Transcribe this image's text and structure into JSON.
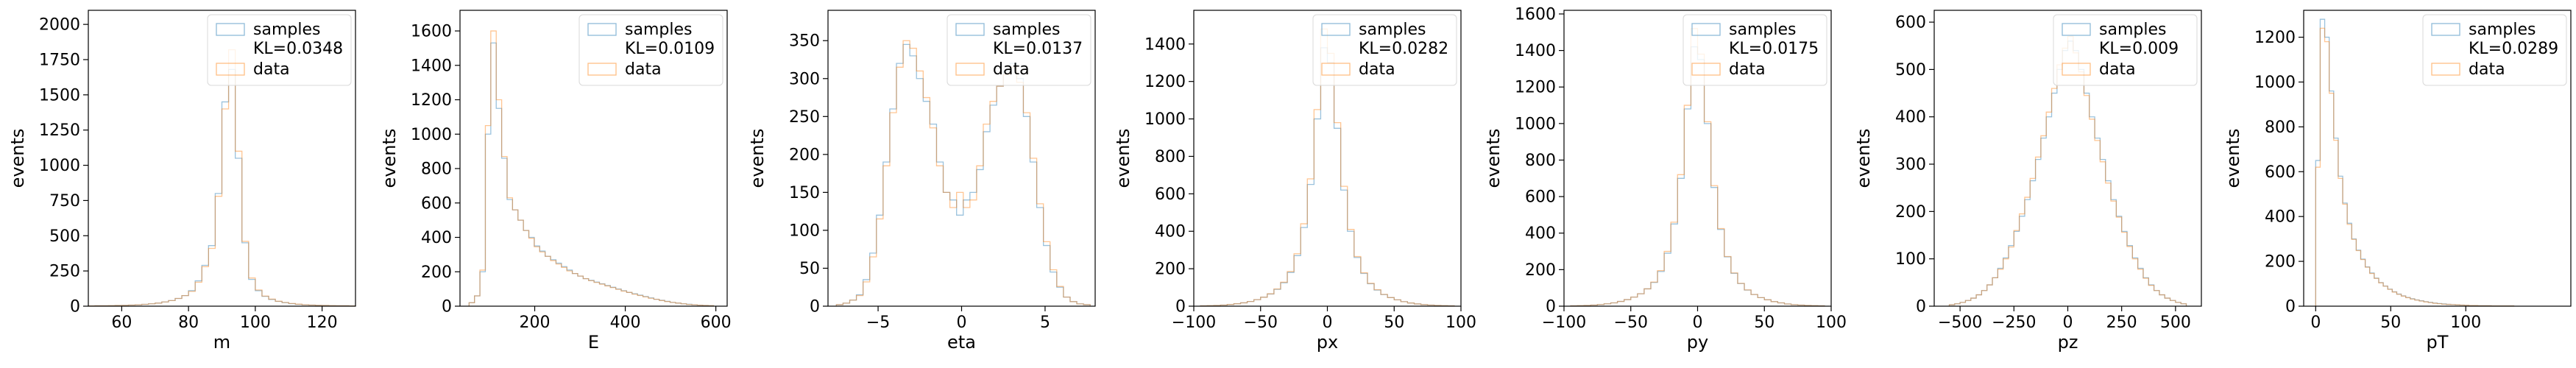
{
  "figure": {
    "colors": {
      "samples": "#1f77b4",
      "data": "#ff7f0e"
    },
    "legend_placement": "upper-right",
    "ylabel": "events"
  },
  "chart_data": [
    {
      "type": "histogram",
      "xlabel": "m",
      "ylabel": "events",
      "xlim": [
        50,
        130
      ],
      "ylim": [
        0,
        2100
      ],
      "xticks": [
        60,
        80,
        100,
        120
      ],
      "yticks": [
        0,
        250,
        500,
        750,
        1000,
        1250,
        1500,
        1750,
        2000
      ],
      "legend": [
        "samples",
        "KL=0.0348",
        "data"
      ],
      "bins": [
        50,
        52,
        54,
        56,
        58,
        60,
        62,
        64,
        66,
        68,
        70,
        72,
        74,
        76,
        78,
        80,
        82,
        84,
        86,
        88,
        90,
        92,
        94,
        96,
        98,
        100,
        102,
        104,
        106,
        108,
        110,
        112,
        114,
        116,
        118,
        120,
        122,
        124,
        126,
        128,
        130
      ],
      "series": [
        {
          "name": "samples",
          "values": [
            2,
            3,
            3,
            4,
            5,
            6,
            8,
            10,
            13,
            17,
            22,
            30,
            40,
            55,
            75,
            110,
            180,
            290,
            430,
            800,
            1450,
            1680,
            1050,
            450,
            190,
            110,
            70,
            48,
            34,
            25,
            18,
            13,
            10,
            8,
            6,
            5,
            4,
            3,
            3,
            2
          ]
        },
        {
          "name": "data",
          "values": [
            2,
            3,
            3,
            4,
            5,
            6,
            8,
            10,
            13,
            17,
            22,
            30,
            40,
            55,
            75,
            105,
            170,
            280,
            410,
            780,
            1400,
            1820,
            1100,
            460,
            200,
            115,
            72,
            50,
            35,
            26,
            19,
            14,
            10,
            8,
            6,
            5,
            4,
            3,
            3,
            2
          ]
        }
      ]
    },
    {
      "type": "histogram",
      "xlabel": "E",
      "ylabel": "events",
      "xlim": [
        35,
        625
      ],
      "ylim": [
        0,
        1720
      ],
      "xticks": [
        200,
        400,
        600
      ],
      "yticks": [
        0,
        200,
        400,
        600,
        800,
        1000,
        1200,
        1400,
        1600
      ],
      "legend": [
        "samples",
        "KL=0.0109",
        "data"
      ],
      "bins": [
        55,
        67,
        79,
        91,
        103,
        115,
        127,
        139,
        151,
        163,
        175,
        187,
        199,
        211,
        223,
        235,
        247,
        259,
        271,
        283,
        295,
        307,
        319,
        331,
        343,
        355,
        367,
        379,
        391,
        403,
        415,
        427,
        439,
        451,
        463,
        475,
        487,
        499,
        511,
        523,
        535,
        547,
        559,
        571,
        583,
        595
      ],
      "series": [
        {
          "name": "samples",
          "values": [
            20,
            60,
            200,
            1000,
            1530,
            1150,
            860,
            620,
            560,
            500,
            440,
            400,
            350,
            320,
            290,
            270,
            250,
            230,
            210,
            190,
            175,
            160,
            150,
            140,
            130,
            120,
            110,
            100,
            90,
            80,
            72,
            64,
            56,
            48,
            40,
            34,
            28,
            22,
            18,
            14,
            11,
            8,
            6,
            4,
            3
          ]
        },
        {
          "name": "data",
          "values": [
            20,
            60,
            210,
            1050,
            1600,
            1200,
            870,
            630,
            560,
            500,
            440,
            395,
            345,
            315,
            290,
            265,
            245,
            225,
            205,
            190,
            175,
            160,
            148,
            138,
            128,
            118,
            108,
            98,
            88,
            80,
            70,
            62,
            54,
            46,
            40,
            33,
            27,
            22,
            18,
            14,
            10,
            8,
            6,
            4,
            3
          ]
        }
      ]
    },
    {
      "type": "histogram",
      "xlabel": "eta",
      "ylabel": "events",
      "xlim": [
        -8,
        8
      ],
      "ylim": [
        0,
        390
      ],
      "xticks": [
        -5,
        0,
        5
      ],
      "yticks": [
        0,
        50,
        100,
        150,
        200,
        250,
        300,
        350
      ],
      "legend": [
        "samples",
        "KL=0.0137",
        "data"
      ],
      "bins": [
        -7.5,
        -7.1,
        -6.7,
        -6.3,
        -5.9,
        -5.5,
        -5.1,
        -4.7,
        -4.3,
        -3.9,
        -3.5,
        -3.1,
        -2.7,
        -2.3,
        -1.9,
        -1.5,
        -1.1,
        -0.7,
        -0.3,
        0.1,
        0.5,
        0.9,
        1.3,
        1.7,
        2.1,
        2.5,
        2.9,
        3.3,
        3.7,
        4.1,
        4.5,
        4.9,
        5.3,
        5.7,
        6.1,
        6.5,
        6.9,
        7.3,
        7.7
      ],
      "series": [
        {
          "name": "samples",
          "values": [
            2,
            4,
            8,
            15,
            35,
            70,
            120,
            190,
            260,
            320,
            345,
            330,
            300,
            270,
            240,
            190,
            150,
            140,
            120,
            140,
            150,
            180,
            230,
            265,
            290,
            310,
            320,
            300,
            250,
            190,
            130,
            80,
            45,
            25,
            12,
            6,
            3,
            2
          ]
        },
        {
          "name": "data",
          "values": [
            2,
            4,
            8,
            14,
            32,
            65,
            115,
            185,
            255,
            315,
            350,
            340,
            310,
            275,
            235,
            185,
            150,
            130,
            150,
            130,
            140,
            185,
            240,
            270,
            290,
            305,
            315,
            295,
            255,
            195,
            135,
            85,
            48,
            26,
            12,
            6,
            3,
            2
          ]
        }
      ]
    },
    {
      "type": "histogram",
      "xlabel": "px",
      "ylabel": "events",
      "xlim": [
        -100,
        100
      ],
      "ylim": [
        0,
        1580
      ],
      "xticks": [
        -100,
        -50,
        0,
        50,
        100
      ],
      "yticks": [
        0,
        200,
        400,
        600,
        800,
        1000,
        1200,
        1400
      ],
      "legend": [
        "samples",
        "KL=0.0282",
        "data"
      ],
      "bins": [
        -95,
        -90,
        -85,
        -80,
        -75,
        -70,
        -65,
        -60,
        -55,
        -50,
        -45,
        -40,
        -35,
        -30,
        -25,
        -20,
        -15,
        -10,
        -5,
        0,
        5,
        10,
        15,
        20,
        25,
        30,
        35,
        40,
        45,
        50,
        55,
        60,
        65,
        70,
        75,
        80,
        85,
        90,
        95
      ],
      "series": [
        {
          "name": "samples",
          "values": [
            2,
            3,
            4,
            6,
            9,
            13,
            18,
            25,
            35,
            48,
            65,
            90,
            125,
            180,
            270,
            420,
            650,
            1000,
            1380,
            1300,
            950,
            620,
            400,
            260,
            175,
            120,
            86,
            62,
            46,
            34,
            24,
            17,
            12,
            8,
            6,
            4,
            3,
            2
          ]
        },
        {
          "name": "data",
          "values": [
            2,
            3,
            4,
            6,
            9,
            13,
            18,
            25,
            35,
            48,
            66,
            92,
            128,
            185,
            280,
            440,
            680,
            1050,
            1480,
            1350,
            980,
            640,
            410,
            265,
            178,
            122,
            88,
            63,
            46,
            34,
            24,
            17,
            12,
            8,
            6,
            4,
            3,
            2
          ]
        }
      ]
    },
    {
      "type": "histogram",
      "xlabel": "py",
      "ylabel": "events",
      "xlim": [
        -100,
        100
      ],
      "ylim": [
        0,
        1620
      ],
      "xticks": [
        -100,
        -50,
        0,
        50,
        100
      ],
      "yticks": [
        0,
        200,
        400,
        600,
        800,
        1000,
        1200,
        1400,
        1600
      ],
      "legend": [
        "samples",
        "KL=0.0175",
        "data"
      ],
      "bins": [
        -95,
        -90,
        -85,
        -80,
        -75,
        -70,
        -65,
        -60,
        -55,
        -50,
        -45,
        -40,
        -35,
        -30,
        -25,
        -20,
        -15,
        -10,
        -5,
        0,
        5,
        10,
        15,
        20,
        25,
        30,
        35,
        40,
        45,
        50,
        55,
        60,
        65,
        70,
        75,
        80,
        85,
        90,
        95
      ],
      "series": [
        {
          "name": "samples",
          "values": [
            2,
            3,
            4,
            6,
            9,
            13,
            18,
            26,
            36,
            50,
            68,
            95,
            130,
            190,
            290,
            450,
            700,
            1080,
            1420,
            1350,
            1000,
            650,
            420,
            270,
            180,
            124,
            88,
            64,
            47,
            35,
            25,
            18,
            12,
            8,
            6,
            4,
            3,
            2
          ]
        },
        {
          "name": "data",
          "values": [
            2,
            3,
            4,
            6,
            9,
            13,
            18,
            26,
            36,
            50,
            68,
            95,
            132,
            195,
            300,
            460,
            720,
            1100,
            1520,
            1380,
            1010,
            660,
            425,
            272,
            182,
            125,
            89,
            64,
            47,
            35,
            25,
            18,
            12,
            8,
            6,
            4,
            3,
            2
          ]
        }
      ]
    },
    {
      "type": "histogram",
      "xlabel": "pz",
      "ylabel": "events",
      "xlim": [
        -620,
        620
      ],
      "ylim": [
        0,
        625
      ],
      "xticks": [
        -500,
        -250,
        0,
        250,
        500
      ],
      "yticks": [
        0,
        100,
        200,
        300,
        400,
        500,
        600
      ],
      "legend": [
        "samples",
        "KL=0.009",
        "data"
      ],
      "bins": [
        -550,
        -525,
        -500,
        -475,
        -450,
        -425,
        -400,
        -375,
        -350,
        -325,
        -300,
        -275,
        -250,
        -225,
        -200,
        -175,
        -150,
        -125,
        -100,
        -75,
        -50,
        -25,
        0,
        25,
        50,
        75,
        100,
        125,
        150,
        175,
        200,
        225,
        250,
        275,
        300,
        325,
        350,
        375,
        400,
        425,
        450,
        475,
        500,
        525,
        550
      ],
      "series": [
        {
          "name": "samples",
          "values": [
            3,
            5,
            8,
            12,
            17,
            24,
            33,
            45,
            60,
            80,
            102,
            128,
            158,
            190,
            225,
            265,
            310,
            355,
            400,
            450,
            500,
            540,
            560,
            540,
            500,
            450,
            400,
            355,
            310,
            265,
            225,
            190,
            158,
            128,
            102,
            80,
            60,
            45,
            33,
            24,
            17,
            12,
            8,
            5
          ]
        },
        {
          "name": "data",
          "values": [
            3,
            5,
            8,
            12,
            17,
            24,
            33,
            45,
            60,
            78,
            100,
            125,
            160,
            195,
            230,
            270,
            315,
            360,
            410,
            460,
            510,
            545,
            570,
            535,
            495,
            445,
            395,
            350,
            305,
            260,
            222,
            188,
            156,
            126,
            100,
            78,
            59,
            44,
            33,
            24,
            17,
            12,
            8,
            5
          ]
        }
      ]
    },
    {
      "type": "histogram",
      "xlabel": "pT",
      "ylabel": "events",
      "xlim": [
        -8,
        170
      ],
      "ylim": [
        0,
        1320
      ],
      "xticks": [
        0,
        50,
        100
      ],
      "yticks": [
        0,
        200,
        400,
        600,
        800,
        1000,
        1200
      ],
      "legend": [
        "samples",
        "KL=0.0289",
        "data"
      ],
      "bins": [
        0,
        3,
        6,
        9,
        12,
        15,
        18,
        21,
        24,
        27,
        30,
        33,
        36,
        39,
        42,
        45,
        48,
        51,
        54,
        57,
        60,
        63,
        66,
        69,
        72,
        75,
        78,
        81,
        84,
        87,
        90,
        93,
        96,
        99,
        102,
        105,
        108,
        111,
        114,
        117,
        120,
        123,
        126,
        129,
        132,
        135
      ],
      "series": [
        {
          "name": "samples",
          "values": [
            650,
            1280,
            1200,
            960,
            750,
            580,
            460,
            370,
            300,
            250,
            210,
            175,
            148,
            125,
            105,
            90,
            76,
            64,
            54,
            46,
            39,
            33,
            28,
            24,
            20,
            17,
            14,
            12,
            10,
            8,
            7,
            6,
            5,
            4,
            3,
            3,
            2,
            2,
            2,
            1,
            1,
            1,
            1,
            1
          ]
        },
        {
          "name": "data",
          "values": [
            620,
            1240,
            1180,
            950,
            740,
            570,
            455,
            365,
            298,
            248,
            208,
            174,
            146,
            124,
            104,
            89,
            75,
            63,
            53,
            45,
            38,
            32,
            27,
            23,
            19,
            16,
            13,
            11,
            9,
            8,
            7,
            6,
            5,
            4,
            3,
            3,
            2,
            2,
            2,
            1,
            1,
            1,
            1,
            1
          ]
        }
      ]
    }
  ]
}
